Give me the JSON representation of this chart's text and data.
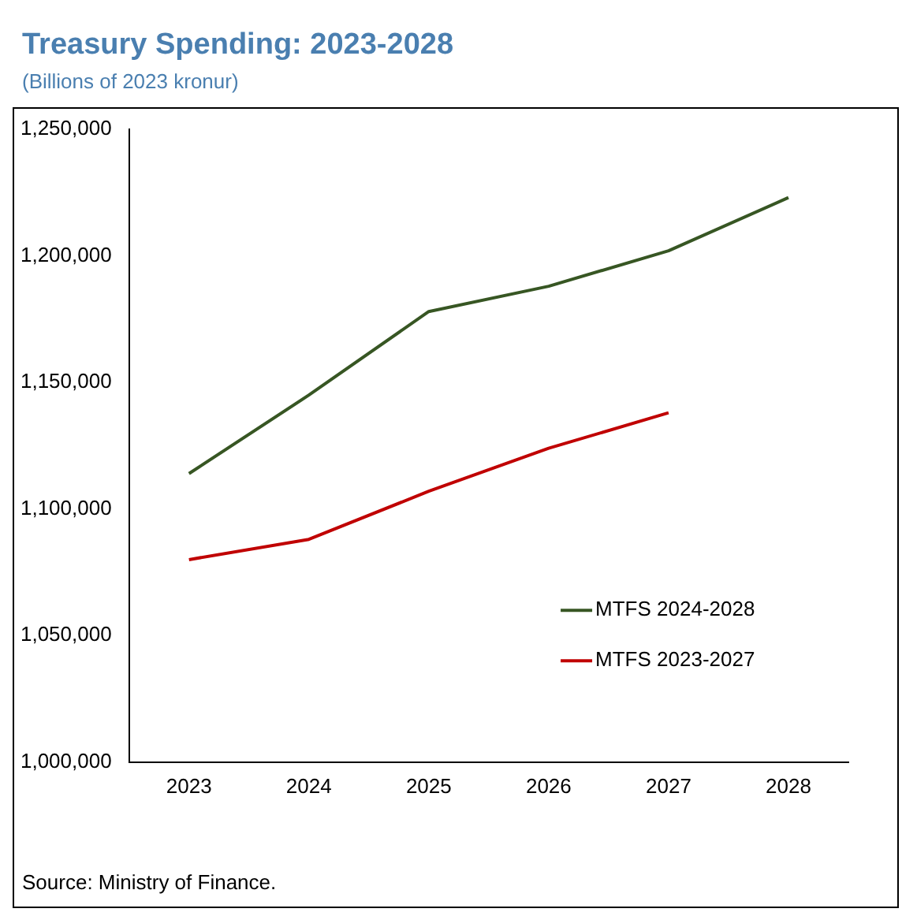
{
  "chart_data": {
    "type": "line",
    "title": "Treasury Spending: 2023-2028",
    "subtitle": "(Billions of 2023 kronur)",
    "categories": [
      "2023",
      "2024",
      "2025",
      "2026",
      "2027",
      "2028"
    ],
    "series": [
      {
        "name": "MTFS 2024-2028",
        "color": "#375623",
        "values": [
          1114000,
          1145000,
          1178000,
          1188000,
          1202000,
          1223000
        ]
      },
      {
        "name": "MTFS 2023-2027",
        "color": "#c00000",
        "values": [
          1080000,
          1088000,
          1107000,
          1124000,
          1138000,
          null
        ]
      }
    ],
    "ylim": [
      1000000,
      1250000
    ],
    "yticks": [
      {
        "value": 1000000,
        "label": "1,000,000"
      },
      {
        "value": 1050000,
        "label": "1,050,000"
      },
      {
        "value": 1100000,
        "label": "1,100,000"
      },
      {
        "value": 1150000,
        "label": "1,150,000"
      },
      {
        "value": 1200000,
        "label": "1,200,000"
      },
      {
        "value": 1250000,
        "label": "1,250,000"
      }
    ],
    "grid": false,
    "legend": "bottom right",
    "marker": "none",
    "line_style": "solid",
    "annotations": [
      "Source: Ministry of Finance."
    ]
  }
}
